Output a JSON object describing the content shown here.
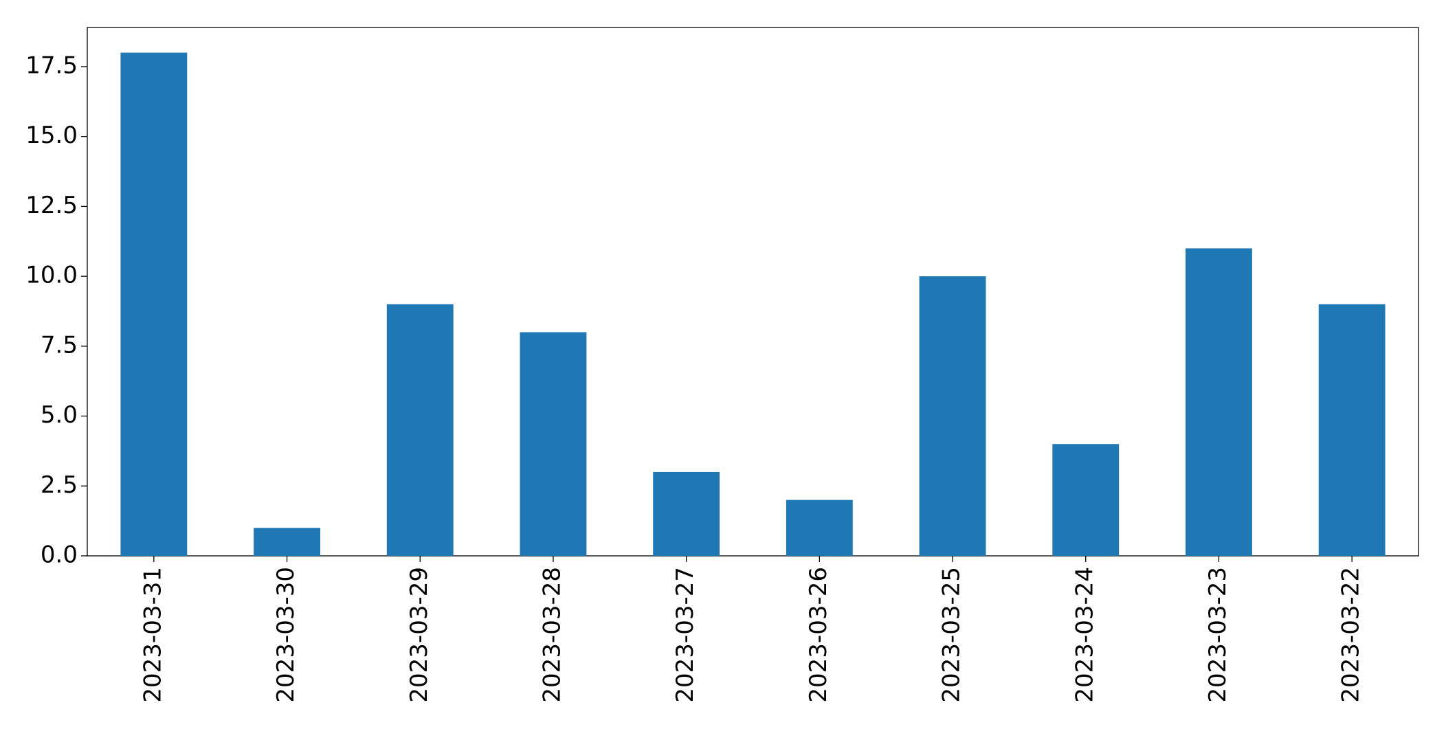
{
  "chart_data": {
    "type": "bar",
    "categories": [
      "2023-03-31",
      "2023-03-30",
      "2023-03-29",
      "2023-03-28",
      "2023-03-27",
      "2023-03-26",
      "2023-03-25",
      "2023-03-24",
      "2023-03-23",
      "2023-03-22"
    ],
    "values": [
      18,
      1,
      9,
      8,
      3,
      2,
      10,
      4,
      11,
      9
    ],
    "color": "#1f77b4",
    "ylim": [
      0,
      18.9
    ],
    "yticks": [
      {
        "value": 0,
        "label": "0.0"
      },
      2.5,
      {
        "value": 5,
        "label": "5.0"
      },
      7.5,
      {
        "value": 10,
        "label": "10.0"
      },
      12.5,
      {
        "value": 15,
        "label": "15.0"
      },
      17.5
    ],
    "grid": false
  }
}
